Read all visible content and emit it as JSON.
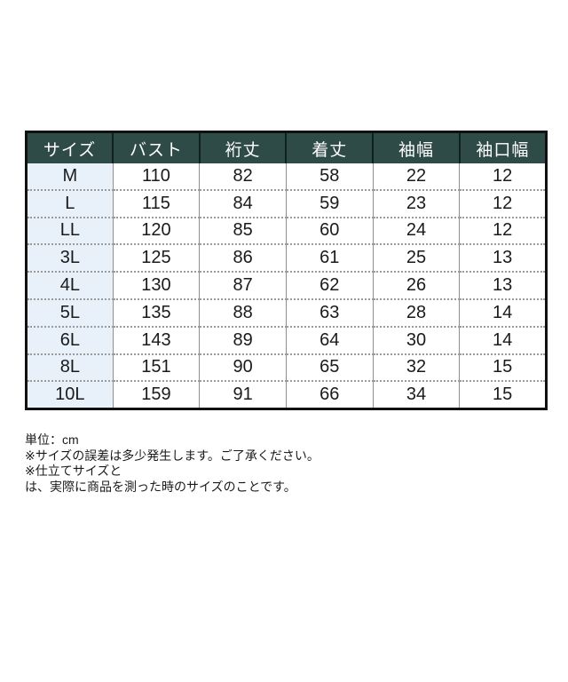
{
  "colors": {
    "header_bg": "#2F4B47",
    "header_text": "#FFFFFF",
    "header_sep": "#0F211F",
    "size_col_bg": "#E8F1FA",
    "outer_border": "#111111",
    "grid_line": "#8F8F8F",
    "dotted_line": "#9B9B9B",
    "text": "#1A1A1A"
  },
  "chart_data": {
    "type": "table",
    "title": "",
    "columns": [
      "サイズ",
      "バスト",
      "裄丈",
      "着丈",
      "袖幅",
      "袖口幅"
    ],
    "rows": [
      [
        "M",
        110,
        82,
        58,
        22,
        12
      ],
      [
        "L",
        115,
        84,
        59,
        23,
        12
      ],
      [
        "LL",
        120,
        85,
        60,
        24,
        12
      ],
      [
        "3L",
        125,
        86,
        61,
        25,
        13
      ],
      [
        "4L",
        130,
        87,
        62,
        26,
        13
      ],
      [
        "5L",
        135,
        88,
        63,
        28,
        14
      ],
      [
        "6L",
        143,
        89,
        64,
        30,
        14
      ],
      [
        "8L",
        151,
        90,
        65,
        32,
        15
      ],
      [
        "10L",
        159,
        91,
        66,
        34,
        15
      ]
    ],
    "unit": "cm",
    "layout": {
      "grid": "solid vertical, dotted horizontal",
      "header_position": "top"
    }
  },
  "notes": {
    "lines": [
      "単位：cm",
      "※サイズの誤差は多少発生します。ご了承ください。",
      "※仕立てサイズと",
      "は、実際に商品を測った時のサイズのことです。"
    ]
  }
}
